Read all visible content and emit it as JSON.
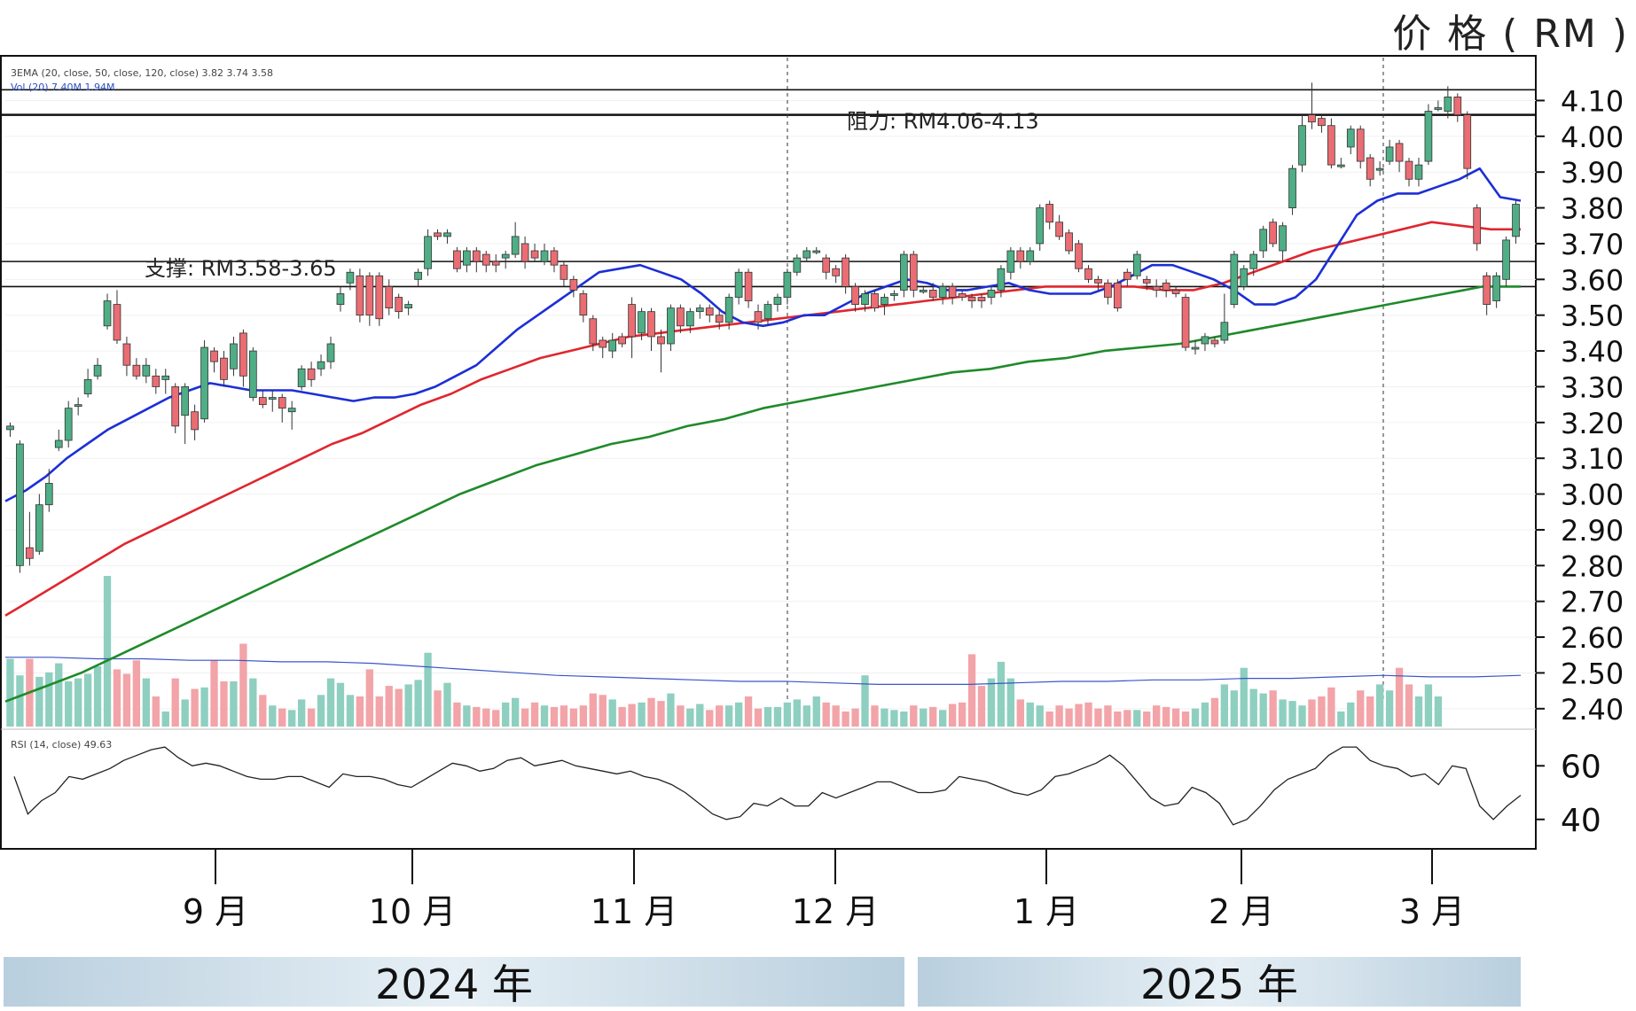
{
  "unit_label": "价 格 ( RM )",
  "years": [
    "2024 年",
    "2025 年"
  ],
  "chart_data": {
    "type": "candlestick",
    "legend_ema": "3EMA (20, close, 50, close, 120, close)  3.82  3.74  3.58",
    "legend_ema_values": [
      "3.82",
      "3.74",
      "3.58"
    ],
    "legend_vol": "Vol (20)  7.40M  1.94M",
    "rsi_legend": "RSI (14, close)  49.63",
    "resistance_label": "阻力: RM4.06-4.13",
    "support_label": "支撑: RM3.58-3.65",
    "resistance_levels": [
      4.06,
      4.13
    ],
    "support_levels": [
      3.58,
      3.65
    ],
    "price_ylim": [
      2.35,
      4.22
    ],
    "price_ticks": [
      "4.10",
      "4.00",
      "3.90",
      "3.80",
      "3.70",
      "3.60",
      "3.50",
      "3.40",
      "3.30",
      "3.20",
      "3.10",
      "3.00",
      "2.90",
      "2.80",
      "2.70",
      "2.60",
      "2.50",
      "2.40"
    ],
    "rsi_ticks": [
      "60",
      "40"
    ],
    "rsi_ylim": [
      30,
      72
    ],
    "month_labels": [
      "9 月",
      "10 月",
      "11 月",
      "12 月",
      "1 月",
      "2 月",
      "3 月"
    ],
    "candles": [
      [
        3.18,
        3.19,
        3.16,
        3.2
      ],
      [
        2.8,
        3.14,
        2.78,
        3.15
      ],
      [
        2.85,
        2.82,
        2.8,
        2.95
      ],
      [
        2.84,
        2.97,
        2.83,
        3.0
      ],
      [
        2.97,
        3.03,
        2.95,
        3.07
      ],
      [
        3.13,
        3.15,
        3.12,
        3.18
      ],
      [
        3.15,
        3.24,
        3.13,
        3.26
      ],
      [
        3.25,
        3.25,
        3.22,
        3.27
      ],
      [
        3.28,
        3.32,
        3.27,
        3.35
      ],
      [
        3.33,
        3.36,
        3.32,
        3.38
      ],
      [
        3.47,
        3.54,
        3.46,
        3.56
      ],
      [
        3.53,
        3.43,
        3.42,
        3.57
      ],
      [
        3.42,
        3.36,
        3.33,
        3.44
      ],
      [
        3.36,
        3.33,
        3.32,
        3.38
      ],
      [
        3.33,
        3.36,
        3.31,
        3.38
      ],
      [
        3.33,
        3.3,
        3.28,
        3.35
      ],
      [
        3.32,
        3.33,
        3.28,
        3.35
      ],
      [
        3.3,
        3.19,
        3.17,
        3.31
      ],
      [
        3.22,
        3.3,
        3.14,
        3.31
      ],
      [
        3.23,
        3.18,
        3.15,
        3.25
      ],
      [
        3.21,
        3.41,
        3.2,
        3.43
      ],
      [
        3.4,
        3.37,
        3.34,
        3.41
      ],
      [
        3.38,
        3.32,
        3.3,
        3.4
      ],
      [
        3.35,
        3.42,
        3.33,
        3.44
      ],
      [
        3.45,
        3.33,
        3.3,
        3.46
      ],
      [
        3.27,
        3.4,
        3.26,
        3.41
      ],
      [
        3.27,
        3.25,
        3.24,
        3.29
      ],
      [
        3.27,
        3.27,
        3.23,
        3.29
      ],
      [
        3.27,
        3.24,
        3.2,
        3.28
      ],
      [
        3.23,
        3.24,
        3.18,
        3.26
      ],
      [
        3.3,
        3.35,
        3.29,
        3.36
      ],
      [
        3.35,
        3.32,
        3.3,
        3.37
      ],
      [
        3.35,
        3.37,
        3.33,
        3.39
      ],
      [
        3.37,
        3.42,
        3.35,
        3.44
      ],
      [
        3.53,
        3.56,
        3.51,
        3.58
      ],
      [
        3.59,
        3.62,
        3.57,
        3.63
      ],
      [
        3.61,
        3.5,
        3.48,
        3.63
      ],
      [
        3.61,
        3.5,
        3.47,
        3.62
      ],
      [
        3.61,
        3.49,
        3.47,
        3.62
      ],
      [
        3.58,
        3.52,
        3.5,
        3.6
      ],
      [
        3.55,
        3.51,
        3.49,
        3.56
      ],
      [
        3.52,
        3.53,
        3.5,
        3.54
      ],
      [
        3.6,
        3.62,
        3.58,
        3.63
      ],
      [
        3.63,
        3.72,
        3.61,
        3.74
      ],
      [
        3.73,
        3.72,
        3.71,
        3.74
      ],
      [
        3.72,
        3.73,
        3.7,
        3.74
      ],
      [
        3.68,
        3.63,
        3.62,
        3.69
      ],
      [
        3.64,
        3.68,
        3.62,
        3.69
      ],
      [
        3.68,
        3.65,
        3.62,
        3.69
      ],
      [
        3.67,
        3.64,
        3.62,
        3.68
      ],
      [
        3.65,
        3.64,
        3.62,
        3.67
      ],
      [
        3.66,
        3.67,
        3.63,
        3.68
      ],
      [
        3.67,
        3.72,
        3.66,
        3.76
      ],
      [
        3.7,
        3.65,
        3.63,
        3.72
      ],
      [
        3.68,
        3.66,
        3.65,
        3.7
      ],
      [
        3.65,
        3.68,
        3.64,
        3.7
      ],
      [
        3.68,
        3.64,
        3.62,
        3.69
      ],
      [
        3.64,
        3.6,
        3.58,
        3.65
      ],
      [
        3.6,
        3.57,
        3.55,
        3.61
      ],
      [
        3.56,
        3.5,
        3.48,
        3.57
      ],
      [
        3.49,
        3.42,
        3.4,
        3.5
      ],
      [
        3.43,
        3.41,
        3.38,
        3.44
      ],
      [
        3.4,
        3.43,
        3.38,
        3.45
      ],
      [
        3.44,
        3.42,
        3.41,
        3.45
      ],
      [
        3.53,
        3.44,
        3.38,
        3.55
      ],
      [
        3.45,
        3.51,
        3.43,
        3.52
      ],
      [
        3.51,
        3.44,
        3.4,
        3.52
      ],
      [
        3.44,
        3.42,
        3.34,
        3.46
      ],
      [
        3.42,
        3.52,
        3.4,
        3.53
      ],
      [
        3.52,
        3.47,
        3.45,
        3.53
      ],
      [
        3.47,
        3.51,
        3.45,
        3.52
      ],
      [
        3.51,
        3.52,
        3.49,
        3.53
      ],
      [
        3.52,
        3.5,
        3.48,
        3.53
      ],
      [
        3.5,
        3.48,
        3.46,
        3.52
      ],
      [
        3.48,
        3.55,
        3.46,
        3.56
      ],
      [
        3.55,
        3.62,
        3.53,
        3.63
      ],
      [
        3.62,
        3.54,
        3.52,
        3.63
      ],
      [
        3.51,
        3.48,
        3.46,
        3.53
      ],
      [
        3.49,
        3.53,
        3.47,
        3.54
      ],
      [
        3.53,
        3.55,
        3.51,
        3.56
      ],
      [
        3.55,
        3.62,
        3.53,
        3.63
      ],
      [
        3.62,
        3.66,
        3.61,
        3.67
      ],
      [
        3.66,
        3.68,
        3.65,
        3.69
      ],
      [
        3.68,
        3.68,
        3.67,
        3.69
      ],
      [
        3.66,
        3.62,
        3.6,
        3.67
      ],
      [
        3.63,
        3.61,
        3.59,
        3.64
      ],
      [
        3.66,
        3.58,
        3.56,
        3.67
      ],
      [
        3.58,
        3.53,
        3.51,
        3.59
      ],
      [
        3.53,
        3.56,
        3.51,
        3.57
      ],
      [
        3.56,
        3.52,
        3.51,
        3.57
      ],
      [
        3.53,
        3.55,
        3.5,
        3.56
      ],
      [
        3.56,
        3.56,
        3.54,
        3.57
      ],
      [
        3.57,
        3.67,
        3.55,
        3.68
      ],
      [
        3.67,
        3.57,
        3.55,
        3.68
      ],
      [
        3.57,
        3.57,
        3.56,
        3.58
      ],
      [
        3.57,
        3.55,
        3.54,
        3.59
      ],
      [
        3.55,
        3.58,
        3.53,
        3.59
      ],
      [
        3.58,
        3.55,
        3.53,
        3.59
      ],
      [
        3.56,
        3.55,
        3.54,
        3.57
      ],
      [
        3.55,
        3.54,
        3.52,
        3.56
      ],
      [
        3.55,
        3.54,
        3.52,
        3.56
      ],
      [
        3.55,
        3.57,
        3.53,
        3.58
      ],
      [
        3.57,
        3.63,
        3.55,
        3.64
      ],
      [
        3.62,
        3.68,
        3.6,
        3.69
      ],
      [
        3.68,
        3.65,
        3.63,
        3.69
      ],
      [
        3.65,
        3.68,
        3.64,
        3.69
      ],
      [
        3.7,
        3.8,
        3.68,
        3.81
      ],
      [
        3.81,
        3.76,
        3.74,
        3.82
      ],
      [
        3.76,
        3.72,
        3.71,
        3.78
      ],
      [
        3.73,
        3.68,
        3.67,
        3.74
      ],
      [
        3.7,
        3.63,
        3.62,
        3.71
      ],
      [
        3.63,
        3.6,
        3.59,
        3.64
      ],
      [
        3.6,
        3.59,
        3.57,
        3.61
      ],
      [
        3.59,
        3.55,
        3.53,
        3.6
      ],
      [
        3.59,
        3.52,
        3.51,
        3.6
      ],
      [
        3.62,
        3.6,
        3.58,
        3.63
      ],
      [
        3.61,
        3.67,
        3.6,
        3.68
      ],
      [
        3.6,
        3.59,
        3.57,
        3.61
      ],
      [
        3.58,
        3.57,
        3.55,
        3.6
      ],
      [
        3.59,
        3.57,
        3.55,
        3.6
      ],
      [
        3.57,
        3.56,
        3.55,
        3.58
      ],
      [
        3.55,
        3.41,
        3.4,
        3.56
      ],
      [
        3.41,
        3.41,
        3.39,
        3.43
      ],
      [
        3.42,
        3.44,
        3.4,
        3.45
      ],
      [
        3.43,
        3.42,
        3.41,
        3.44
      ],
      [
        3.43,
        3.48,
        3.42,
        3.56
      ],
      [
        3.53,
        3.67,
        3.52,
        3.68
      ],
      [
        3.58,
        3.63,
        3.57,
        3.64
      ],
      [
        3.63,
        3.67,
        3.61,
        3.68
      ],
      [
        3.68,
        3.74,
        3.66,
        3.75
      ],
      [
        3.76,
        3.7,
        3.69,
        3.77
      ],
      [
        3.68,
        3.75,
        3.65,
        3.76
      ],
      [
        3.8,
        3.91,
        3.78,
        3.92
      ],
      [
        3.92,
        4.03,
        3.9,
        4.06
      ],
      [
        4.06,
        4.04,
        4.02,
        4.15
      ],
      [
        4.05,
        4.03,
        4.01,
        4.06
      ],
      [
        4.03,
        3.92,
        3.91,
        4.05
      ],
      [
        3.92,
        3.92,
        3.91,
        3.94
      ],
      [
        3.97,
        4.02,
        3.95,
        4.03
      ],
      [
        4.02,
        3.93,
        3.91,
        4.03
      ],
      [
        3.94,
        3.88,
        3.86,
        3.95
      ],
      [
        3.91,
        3.91,
        3.89,
        3.93
      ],
      [
        3.93,
        3.97,
        3.92,
        3.99
      ],
      [
        3.98,
        3.93,
        3.9,
        3.99
      ],
      [
        3.93,
        3.88,
        3.86,
        3.94
      ],
      [
        3.88,
        3.92,
        3.86,
        3.94
      ],
      [
        3.93,
        4.07,
        3.92,
        4.09
      ],
      [
        4.08,
        4.08,
        4.07,
        4.1
      ],
      [
        4.07,
        4.11,
        4.05,
        4.14
      ],
      [
        4.11,
        4.06,
        4.04,
        4.12
      ],
      [
        4.06,
        3.91,
        3.88,
        4.07
      ],
      [
        3.8,
        3.7,
        3.68,
        3.81
      ],
      [
        3.61,
        3.53,
        3.5,
        3.62
      ],
      [
        3.54,
        3.61,
        3.52,
        3.62
      ],
      [
        3.6,
        3.71,
        3.58,
        3.72
      ],
      [
        3.72,
        3.81,
        3.7,
        3.82
      ]
    ],
    "ema20": [
      2.98,
      3.01,
      3.05,
      3.1,
      3.14,
      3.18,
      3.21,
      3.24,
      3.27,
      3.29,
      3.31,
      3.3,
      3.29,
      3.29,
      3.29,
      3.28,
      3.27,
      3.26,
      3.27,
      3.27,
      3.28,
      3.3,
      3.33,
      3.36,
      3.41,
      3.46,
      3.5,
      3.54,
      3.58,
      3.62,
      3.63,
      3.64,
      3.62,
      3.6,
      3.56,
      3.51,
      3.48,
      3.47,
      3.48,
      3.5,
      3.5,
      3.53,
      3.56,
      3.58,
      3.6,
      3.59,
      3.57,
      3.57,
      3.58,
      3.59,
      3.57,
      3.56,
      3.56,
      3.56,
      3.58,
      3.61,
      3.64,
      3.64,
      3.62,
      3.6,
      3.57,
      3.53,
      3.53,
      3.55,
      3.6,
      3.69,
      3.78,
      3.82,
      3.84,
      3.84,
      3.86,
      3.88,
      3.91,
      3.83,
      3.82
    ],
    "ema50": [
      2.66,
      2.71,
      2.76,
      2.81,
      2.86,
      2.9,
      2.94,
      2.98,
      3.02,
      3.06,
      3.1,
      3.14,
      3.17,
      3.21,
      3.25,
      3.28,
      3.32,
      3.35,
      3.38,
      3.4,
      3.42,
      3.44,
      3.45,
      3.46,
      3.47,
      3.48,
      3.49,
      3.5,
      3.51,
      3.52,
      3.53,
      3.54,
      3.55,
      3.56,
      3.57,
      3.58,
      3.58,
      3.58,
      3.58,
      3.57,
      3.57,
      3.59,
      3.62,
      3.65,
      3.68,
      3.7,
      3.72,
      3.74,
      3.76,
      3.75,
      3.74,
      3.74
    ],
    "ema120": [
      2.42,
      2.46,
      2.5,
      2.55,
      2.6,
      2.65,
      2.7,
      2.75,
      2.8,
      2.85,
      2.9,
      2.95,
      3.0,
      3.04,
      3.08,
      3.11,
      3.14,
      3.16,
      3.19,
      3.21,
      3.24,
      3.26,
      3.28,
      3.3,
      3.32,
      3.34,
      3.35,
      3.37,
      3.38,
      3.4,
      3.41,
      3.42,
      3.44,
      3.46,
      3.48,
      3.5,
      3.52,
      3.54,
      3.56,
      3.58,
      3.58
    ],
    "volume_ma": [
      0.46,
      0.46,
      0.45,
      0.45,
      0.44,
      0.44,
      0.43,
      0.43,
      0.42,
      0.4,
      0.38,
      0.36,
      0.34,
      0.33,
      0.32,
      0.31,
      0.3,
      0.3,
      0.29,
      0.28,
      0.28,
      0.28,
      0.29,
      0.3,
      0.3,
      0.31,
      0.31,
      0.32,
      0.32,
      0.33,
      0.34,
      0.33,
      0.33,
      0.34
    ],
    "volumes": [
      0.45,
      0.34,
      0.45,
      0.33,
      0.36,
      0.42,
      0.3,
      0.32,
      0.35,
      0.4,
      1.0,
      0.38,
      0.35,
      0.44,
      0.32,
      0.2,
      0.1,
      0.32,
      0.18,
      0.25,
      0.26,
      0.44,
      0.3,
      0.3,
      0.55,
      0.32,
      0.21,
      0.14,
      0.12,
      0.11,
      0.18,
      0.12,
      0.21,
      0.32,
      0.29,
      0.21,
      0.2,
      0.38,
      0.2,
      0.27,
      0.25,
      0.28,
      0.31,
      0.49,
      0.24,
      0.29,
      0.16,
      0.14,
      0.13,
      0.12,
      0.11,
      0.16,
      0.19,
      0.12,
      0.16,
      0.14,
      0.13,
      0.14,
      0.12,
      0.14,
      0.22,
      0.21,
      0.18,
      0.13,
      0.15,
      0.16,
      0.19,
      0.17,
      0.22,
      0.14,
      0.12,
      0.15,
      0.11,
      0.14,
      0.14,
      0.16,
      0.2,
      0.12,
      0.13,
      0.13,
      0.16,
      0.18,
      0.14,
      0.2,
      0.16,
      0.14,
      0.1,
      0.12,
      0.34,
      0.14,
      0.12,
      0.11,
      0.1,
      0.14,
      0.12,
      0.13,
      0.11,
      0.15,
      0.16,
      0.48,
      0.27,
      0.32,
      0.43,
      0.32,
      0.18,
      0.16,
      0.14,
      0.1,
      0.14,
      0.12,
      0.15,
      0.16,
      0.12,
      0.14,
      0.1,
      0.11,
      0.11,
      0.1,
      0.14,
      0.13,
      0.12,
      0.1,
      0.12,
      0.16,
      0.19,
      0.28,
      0.24,
      0.39,
      0.25,
      0.22,
      0.24,
      0.18,
      0.17,
      0.14,
      0.18,
      0.2,
      0.26,
      0.1,
      0.16,
      0.24,
      0.2,
      0.28,
      0.24,
      0.39,
      0.28,
      0.2,
      0.28,
      0.2
    ],
    "rsi": [
      56,
      42,
      47,
      50,
      56,
      55,
      57,
      59,
      62,
      64,
      66,
      67,
      63,
      60,
      61,
      60,
      58,
      56,
      55,
      55,
      56,
      56,
      54,
      52,
      57,
      56,
      56,
      55,
      53,
      52,
      55,
      58,
      61,
      60,
      58,
      59,
      62,
      63,
      60,
      61,
      62,
      60,
      59,
      58,
      57,
      58,
      56,
      55,
      53,
      50,
      46,
      42,
      40,
      41,
      46,
      45,
      48,
      45,
      45,
      50,
      48,
      50,
      52,
      54,
      54,
      52,
      50,
      50,
      51,
      56,
      55,
      54,
      52,
      50,
      49,
      51,
      56,
      57,
      59,
      61,
      64,
      60,
      54,
      48,
      45,
      46,
      52,
      50,
      46,
      38,
      40,
      45,
      51,
      55,
      57,
      59,
      64,
      67,
      67,
      62,
      60,
      59,
      56,
      57,
      53,
      60,
      59,
      45,
      40,
      45,
      49
    ]
  }
}
